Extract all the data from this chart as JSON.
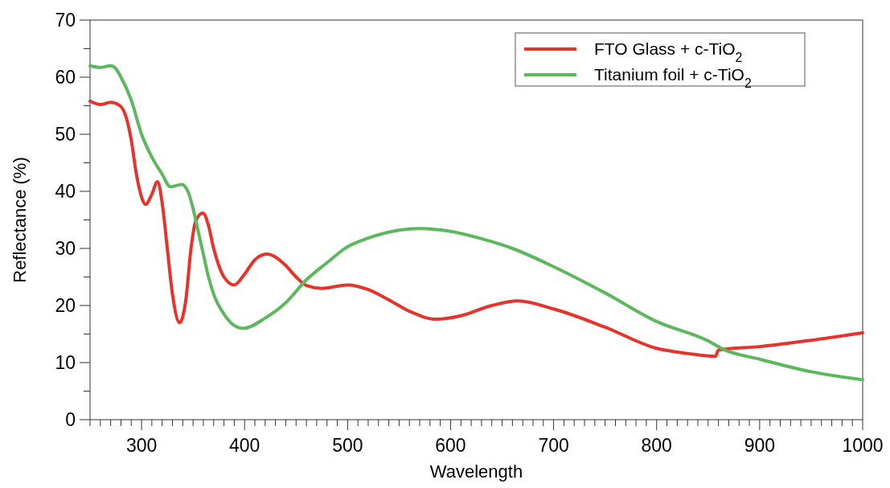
{
  "chart_data": {
    "type": "line",
    "xlabel": "Wavelength",
    "ylabel": "Reflectance (%)",
    "xlim": [
      250,
      1000
    ],
    "ylim": [
      0,
      70
    ],
    "xticks": [
      {
        "value": 250,
        "label": null
      },
      {
        "value": 260,
        "label": null
      },
      {
        "value": 270,
        "label": null
      },
      {
        "value": 280,
        "label": null
      },
      {
        "value": 290,
        "label": null
      },
      300,
      {
        "value": 310,
        "label": null
      },
      {
        "value": 320,
        "label": null
      },
      {
        "value": 330,
        "label": null
      },
      {
        "value": 340,
        "label": null
      },
      {
        "value": 350,
        "label": null
      },
      {
        "value": 360,
        "label": null
      },
      {
        "value": 370,
        "label": null
      },
      {
        "value": 380,
        "label": null
      },
      {
        "value": 390,
        "label": null
      },
      400,
      {
        "value": 410,
        "label": null
      },
      {
        "value": 420,
        "label": null
      },
      {
        "value": 430,
        "label": null
      },
      {
        "value": 440,
        "label": null
      },
      {
        "value": 450,
        "label": null
      },
      {
        "value": 460,
        "label": null
      },
      {
        "value": 470,
        "label": null
      },
      {
        "value": 480,
        "label": null
      },
      {
        "value": 490,
        "label": null
      },
      500,
      {
        "value": 510,
        "label": null
      },
      {
        "value": 520,
        "label": null
      },
      {
        "value": 530,
        "label": null
      },
      {
        "value": 540,
        "label": null
      },
      {
        "value": 550,
        "label": null
      },
      {
        "value": 560,
        "label": null
      },
      {
        "value": 570,
        "label": null
      },
      {
        "value": 580,
        "label": null
      },
      {
        "value": 590,
        "label": null
      },
      600,
      {
        "value": 610,
        "label": null
      },
      {
        "value": 620,
        "label": null
      },
      {
        "value": 630,
        "label": null
      },
      {
        "value": 640,
        "label": null
      },
      {
        "value": 650,
        "label": null
      },
      {
        "value": 660,
        "label": null
      },
      {
        "value": 670,
        "label": null
      },
      {
        "value": 680,
        "label": null
      },
      {
        "value": 690,
        "label": null
      },
      700,
      {
        "value": 710,
        "label": null
      },
      {
        "value": 720,
        "label": null
      },
      {
        "value": 730,
        "label": null
      },
      {
        "value": 740,
        "label": null
      },
      {
        "value": 750,
        "label": null
      },
      {
        "value": 760,
        "label": null
      },
      {
        "value": 770,
        "label": null
      },
      {
        "value": 780,
        "label": null
      },
      {
        "value": 790,
        "label": null
      },
      800,
      {
        "value": 810,
        "label": null
      },
      {
        "value": 820,
        "label": null
      },
      {
        "value": 830,
        "label": null
      },
      {
        "value": 840,
        "label": null
      },
      {
        "value": 850,
        "label": null
      },
      {
        "value": 860,
        "label": null
      },
      {
        "value": 870,
        "label": null
      },
      {
        "value": 880,
        "label": null
      },
      {
        "value": 890,
        "label": null
      },
      900,
      {
        "value": 910,
        "label": null
      },
      {
        "value": 920,
        "label": null
      },
      {
        "value": 930,
        "label": null
      },
      {
        "value": 940,
        "label": null
      },
      {
        "value": 950,
        "label": null
      },
      {
        "value": 960,
        "label": null
      },
      {
        "value": 970,
        "label": null
      },
      {
        "value": 980,
        "label": null
      },
      {
        "value": 990,
        "label": null
      },
      1000
    ],
    "yticks": [
      0,
      {
        "value": 5,
        "label": null
      },
      10,
      {
        "value": 15,
        "label": null
      },
      20,
      {
        "value": 25,
        "label": null
      },
      30,
      {
        "value": 35,
        "label": null
      },
      40,
      {
        "value": 45,
        "label": null
      },
      50,
      {
        "value": 55,
        "label": null
      },
      60,
      {
        "value": 65,
        "label": null
      },
      70
    ],
    "grid": false,
    "legend": "top right",
    "marker": "none",
    "line_style": "solid",
    "series": [
      {
        "name": "FTO Glass + c-TiO$_{2}$",
        "color": "#e8332a",
        "x": [
          250,
          260,
          270,
          279,
          285,
          290,
          295,
          300,
          304,
          310,
          315.5,
          320,
          325,
          330,
          337,
          343,
          348,
          353,
          359.6,
          365,
          370,
          375,
          380,
          390,
          400,
          410,
          421.6,
          430,
          440,
          450,
          460,
          475,
          500,
          520,
          540,
          560,
          586,
          610,
          640,
          665,
          700,
          750,
          800,
          830,
          857,
          860,
          900,
          950,
          1000
        ],
        "values": [
          55.8,
          55.2,
          55.6,
          55,
          53,
          49,
          43,
          39,
          37.7,
          39.5,
          41.7,
          38,
          30,
          22,
          17,
          21,
          30,
          35,
          36.2,
          34,
          30,
          27,
          25,
          23.6,
          25.5,
          28,
          29,
          28.5,
          27,
          25,
          23.5,
          23,
          23.6,
          22.8,
          21,
          19,
          17.6,
          18.2,
          20,
          20.8,
          19.4,
          16.2,
          12.5,
          11.6,
          11.1,
          12.2,
          12.8,
          13.9,
          15.2
        ]
      },
      {
        "name": "Titanium foil + c-TiO$_{2}$",
        "color": "#5cb85c",
        "x": [
          250,
          260,
          270,
          275,
          280,
          290,
          300,
          310,
          320,
          328,
          339,
          345,
          350,
          355,
          360,
          365,
          370,
          380,
          390,
          399,
          420,
          440,
          460,
          480,
          500,
          520,
          550,
          570,
          600,
          630,
          660,
          700,
          750,
          800,
          850,
          865,
          900,
          950,
          1000
        ],
        "values": [
          62,
          61.7,
          62,
          61.5,
          60,
          56,
          50,
          46,
          43,
          40.8,
          41.2,
          40,
          37,
          33,
          29,
          25,
          22,
          18.5,
          16.5,
          16,
          17.8,
          20.5,
          24.5,
          27.5,
          30.3,
          31.8,
          33.2,
          33.5,
          33,
          31.7,
          30,
          26.8,
          22.2,
          17.2,
          13.8,
          12.3,
          10.6,
          8.4,
          7
        ]
      }
    ]
  }
}
